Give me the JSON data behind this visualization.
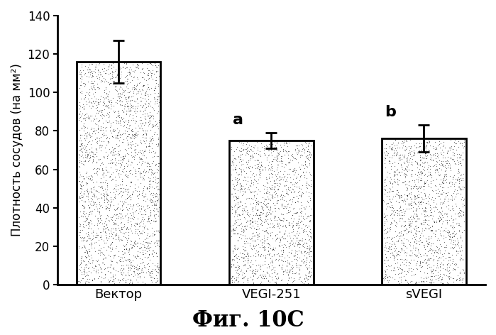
{
  "categories": [
    "Вектор",
    "VEGI-251",
    "sVEGI"
  ],
  "values": [
    116,
    75,
    76
  ],
  "errors": [
    11,
    4,
    7
  ],
  "annotations": [
    "",
    "a",
    "b"
  ],
  "annotation_offsets": [
    0,
    -0.22,
    -0.22
  ],
  "ylabel": "Плотность сосудов (на мм²)",
  "xlabel_figure": "Фиг. 10C",
  "ylim": [
    0,
    140
  ],
  "yticks": [
    0,
    20,
    40,
    60,
    80,
    100,
    120,
    140
  ],
  "bar_color": "#ffffff",
  "bar_edgecolor": "#000000",
  "bar_width": 0.55,
  "background_color": "#ffffff",
  "figure_fontsize": 22,
  "ylabel_fontsize": 12,
  "annotation_fontsize": 16,
  "tick_fontsize": 12,
  "xtick_fontsize": 13,
  "stipple_density": 3000,
  "stipple_color": "#000000",
  "stipple_alpha": 0.55,
  "stipple_size": 0.8
}
